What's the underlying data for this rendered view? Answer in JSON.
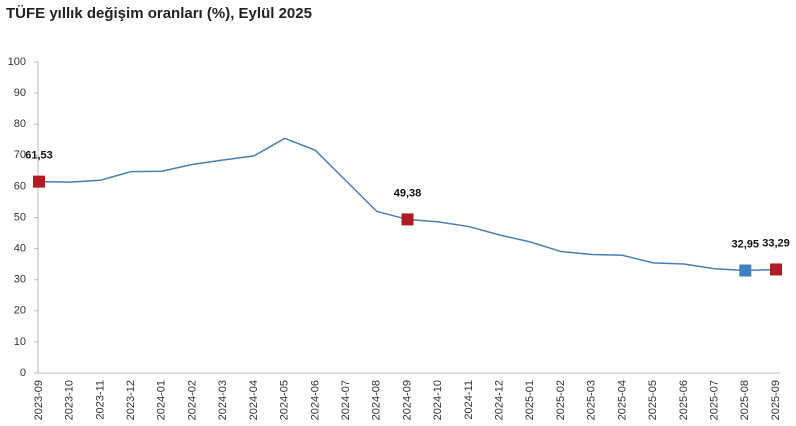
{
  "chart_data": {
    "type": "line",
    "title": "TÜFE yıllık değişim oranları (%), Eylül 2025",
    "categories": [
      "2023-09",
      "2023-10",
      "2023-11",
      "2023-12",
      "2024-01",
      "2024-02",
      "2024-03",
      "2024-04",
      "2024-05",
      "2024-06",
      "2024-07",
      "2024-08",
      "2024-09",
      "2024-10",
      "2024-11",
      "2024-12",
      "2025-01",
      "2025-02",
      "2025-03",
      "2025-04",
      "2025-05",
      "2025-06",
      "2025-07",
      "2025-08",
      "2025-09"
    ],
    "series": [
      {
        "color": "#4a7fb5",
        "values": [
          61.53,
          61.36,
          61.98,
          64.77,
          64.86,
          67.07,
          68.5,
          69.8,
          75.45,
          71.6,
          61.78,
          51.97,
          49.38,
          48.58,
          47.09,
          44.38,
          42.12,
          39.05,
          38.1,
          37.86,
          35.41,
          35.05,
          33.52,
          32.95,
          33.29
        ],
        "value_labels": [
          "61,53",
          null,
          null,
          null,
          null,
          null,
          null,
          null,
          null,
          null,
          null,
          null,
          "49,38",
          null,
          null,
          null,
          null,
          null,
          null,
          null,
          null,
          null,
          null,
          "32,95",
          "33,29"
        ],
        "marker_colors": [
          "#b01c24",
          null,
          null,
          null,
          null,
          null,
          null,
          null,
          null,
          null,
          null,
          null,
          "#b01c24",
          null,
          null,
          null,
          null,
          null,
          null,
          null,
          null,
          null,
          null,
          "#3d7fbf",
          "#b01c24"
        ]
      }
    ],
    "ylim": [
      0,
      100
    ],
    "yticks": [
      0,
      10,
      20,
      30,
      40,
      50,
      60,
      70,
      80,
      90,
      100
    ],
    "grid": false
  }
}
